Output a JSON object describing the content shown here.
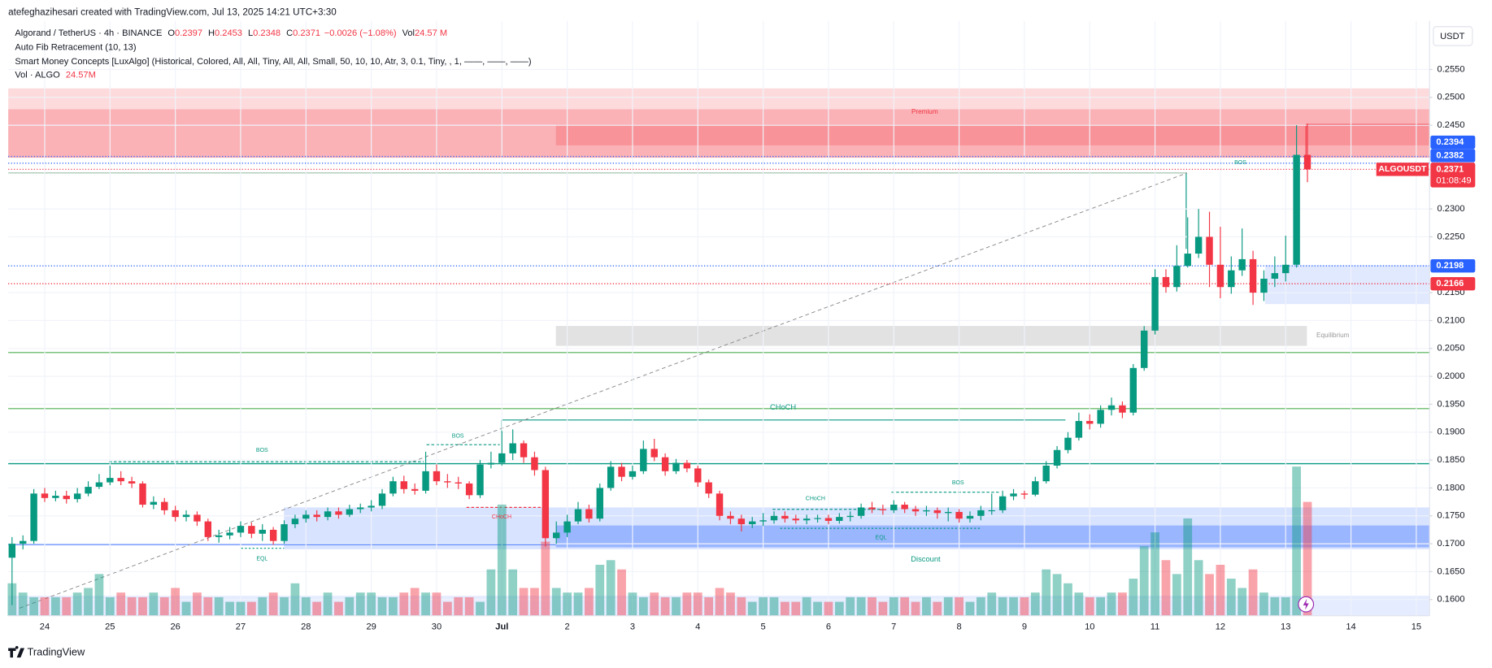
{
  "header": {
    "author": "atefeghazihesari created with TradingView.com, Jul 13, 2025 14:21 UTC+3:30"
  },
  "chart_data": {
    "type": "candlestick",
    "title": "Algorand / TetherUS · 4h · BINANCE",
    "ohlc_legend": [
      {
        "label": "O",
        "value": 0.2397
      },
      {
        "label": "H",
        "value": 0.2453
      },
      {
        "label": "L",
        "value": 0.2348
      },
      {
        "label": "C",
        "value": 0.2371
      }
    ],
    "change": "−0.0026 (−1.08%)",
    "volume_legend": {
      "label": "Vol",
      "value": "24.57 M"
    },
    "indicators": [
      "Auto Fib Retracement (10, 13)",
      "Smart Money Concepts [LuxAlgo] (Historical, Colored, All, All, Tiny, All, All, Small, 50, 10, 10, Atr, 3, 0.1, Tiny, , 1, ——, ——, ——)"
    ],
    "volume_indicator": {
      "label": "Vol · ALGO",
      "value": "24.57M"
    },
    "currency": "USDT",
    "up_color": "#089981",
    "down_color": "#f23645",
    "categories": [
      null,
      null,
      null,
      "24",
      null,
      null,
      null,
      null,
      null,
      "25",
      null,
      null,
      null,
      null,
      null,
      "26",
      null,
      null,
      null,
      null,
      null,
      "27",
      null,
      null,
      null,
      null,
      null,
      "28",
      null,
      null,
      null,
      null,
      null,
      "29",
      null,
      null,
      null,
      null,
      null,
      "30",
      null,
      null,
      null,
      null,
      null,
      "Jul",
      null,
      null,
      null,
      null,
      null,
      "2",
      null,
      null,
      null,
      null,
      null,
      "3",
      null,
      null,
      null,
      null,
      null,
      "4",
      null,
      null,
      null,
      null,
      null,
      "5",
      null,
      null,
      null,
      null,
      null,
      "6",
      null,
      null,
      null,
      null,
      null,
      "7",
      null,
      null,
      null,
      null,
      null,
      "8",
      null,
      null,
      null,
      null,
      null,
      "9",
      null,
      null,
      null,
      null,
      null,
      "10",
      null,
      null,
      null,
      null,
      null,
      "11",
      null,
      null,
      null,
      null,
      null,
      "12",
      null,
      null,
      null,
      null,
      null,
      "13",
      null,
      null,
      null,
      null,
      null,
      "14",
      null,
      null,
      null,
      null,
      null,
      "15"
    ],
    "open": [
      0.1675,
      0.17,
      0.1705,
      0.179,
      0.1782,
      0.1786,
      0.178,
      0.179,
      0.1802,
      0.181,
      0.1818,
      0.1812,
      0.1808,
      0.177,
      0.1775,
      0.176,
      0.1748,
      0.1752,
      0.174,
      0.1712,
      0.1715,
      0.172,
      0.1732,
      0.1718,
      0.1725,
      0.1705,
      0.1735,
      0.1745,
      0.1752,
      0.1748,
      0.1758,
      0.1752,
      0.1762,
      0.1765,
      0.1768,
      0.179,
      0.1812,
      0.1798,
      0.1795,
      0.183,
      0.1812,
      0.181,
      0.1808,
      0.1787,
      0.1842,
      0.1845,
      0.1862,
      0.188,
      0.1855,
      0.1832,
      0.171,
      0.172,
      0.174,
      0.1762,
      0.1745,
      0.18,
      0.1838,
      0.182,
      0.183,
      0.187,
      0.1855,
      0.183,
      0.1845,
      0.1835,
      0.181,
      0.179,
      0.175,
      0.1745,
      0.1735,
      0.174,
      0.1742,
      0.175,
      0.1745,
      0.1742,
      0.1745,
      0.1746,
      0.1741,
      0.1748,
      0.175,
      0.1765,
      0.1762,
      0.176,
      0.177,
      0.1762,
      0.1758,
      0.176,
      0.1755,
      0.1757,
      0.1745,
      0.175,
      0.176,
      0.176,
      0.1785,
      0.179,
      0.1788,
      0.1812,
      0.184,
      0.1868,
      0.189,
      0.192,
      0.1915,
      0.194,
      0.1948,
      0.1935,
      0.2015,
      0.2082,
      0.2178,
      0.216,
      0.2198,
      0.222,
      0.225,
      0.22,
      0.216,
      0.219,
      0.221,
      0.215,
      0.2175,
      0.2185,
      0.22,
      0.2397,
      null,
      null,
      null,
      null,
      null,
      null,
      null,
      null,
      null,
      null
    ],
    "high": [
      0.1712,
      0.1715,
      0.1798,
      0.18,
      0.1795,
      0.1795,
      0.18,
      0.1812,
      0.1825,
      0.184,
      0.183,
      0.182,
      0.1812,
      0.1785,
      0.1782,
      0.1768,
      0.176,
      0.1758,
      0.1745,
      0.1725,
      0.173,
      0.174,
      0.1738,
      0.1735,
      0.173,
      0.1742,
      0.1752,
      0.176,
      0.176,
      0.1765,
      0.1765,
      0.177,
      0.1772,
      0.1778,
      0.1798,
      0.182,
      0.1822,
      0.1808,
      0.1865,
      0.1842,
      0.1825,
      0.182,
      0.1812,
      0.185,
      0.1865,
      0.1902,
      0.1905,
      0.1885,
      0.1865,
      0.1838,
      0.174,
      0.1752,
      0.1775,
      0.177,
      0.1808,
      0.1848,
      0.1845,
      0.184,
      0.1885,
      0.1888,
      0.1862,
      0.1852,
      0.185,
      0.184,
      0.1815,
      0.1795,
      0.1758,
      0.1752,
      0.1748,
      0.1755,
      0.1758,
      0.1758,
      0.1752,
      0.1752,
      0.1752,
      0.1752,
      0.1755,
      0.1758,
      0.1772,
      0.1775,
      0.177,
      0.1778,
      0.1775,
      0.1768,
      0.1768,
      0.1765,
      0.1765,
      0.1762,
      0.1758,
      0.1768,
      0.179,
      0.1795,
      0.1798,
      0.1795,
      0.182,
      0.1848,
      0.1875,
      0.19,
      0.1935,
      0.1932,
      0.1948,
      0.1962,
      0.1955,
      0.2022,
      0.209,
      0.2192,
      0.2192,
      0.2235,
      0.2285,
      0.23,
      0.2295,
      0.2268,
      0.2215,
      0.2265,
      0.2225,
      0.219,
      0.2215,
      0.2252,
      0.245,
      0.2453,
      null,
      null,
      null,
      null,
      null,
      null,
      null,
      null,
      null,
      null
    ],
    "low": [
      0.159,
      0.169,
      0.17,
      0.1775,
      0.1776,
      0.1772,
      0.1774,
      0.1785,
      0.1798,
      0.1805,
      0.1805,
      0.18,
      0.1765,
      0.1762,
      0.1752,
      0.174,
      0.174,
      0.1732,
      0.1705,
      0.1702,
      0.1708,
      0.1712,
      0.171,
      0.1705,
      0.1698,
      0.17,
      0.1728,
      0.1738,
      0.174,
      0.1742,
      0.1745,
      0.1748,
      0.1755,
      0.1758,
      0.1762,
      0.1785,
      0.179,
      0.1788,
      0.179,
      0.1805,
      0.18,
      0.1798,
      0.178,
      0.1782,
      0.1835,
      0.184,
      0.185,
      0.1845,
      0.1822,
      0.1695,
      0.17,
      0.1712,
      0.1735,
      0.1738,
      0.174,
      0.1795,
      0.1812,
      0.1815,
      0.1825,
      0.1848,
      0.1822,
      0.1825,
      0.1828,
      0.1802,
      0.1782,
      0.1742,
      0.1735,
      0.1722,
      0.1728,
      0.1732,
      0.1736,
      0.1738,
      0.1736,
      0.1735,
      0.1738,
      0.1735,
      0.1736,
      0.174,
      0.1745,
      0.1755,
      0.1752,
      0.1755,
      0.1755,
      0.175,
      0.175,
      0.1745,
      0.174,
      0.1738,
      0.1738,
      0.1742,
      0.1752,
      0.1755,
      0.1778,
      0.178,
      0.1785,
      0.1808,
      0.1835,
      0.1862,
      0.1885,
      0.1905,
      0.1908,
      0.193,
      0.1925,
      0.193,
      0.201,
      0.2075,
      0.215,
      0.2152,
      0.2195,
      0.2212,
      0.216,
      0.214,
      0.2148,
      0.218,
      0.2128,
      0.2135,
      0.216,
      0.217,
      0.2195,
      0.2348,
      null,
      null,
      null,
      null,
      null,
      null,
      null,
      null,
      null,
      null
    ],
    "close": [
      0.17,
      0.1705,
      0.179,
      0.1782,
      0.1786,
      0.178,
      0.179,
      0.1802,
      0.181,
      0.1818,
      0.1812,
      0.1808,
      0.177,
      0.1775,
      0.176,
      0.1748,
      0.1752,
      0.174,
      0.1712,
      0.1715,
      0.172,
      0.1732,
      0.1718,
      0.1725,
      0.1705,
      0.1735,
      0.1745,
      0.1752,
      0.1748,
      0.1758,
      0.1752,
      0.1762,
      0.1765,
      0.1768,
      0.179,
      0.1812,
      0.1798,
      0.1795,
      0.183,
      0.1812,
      0.181,
      0.1808,
      0.1787,
      0.1842,
      0.1845,
      0.1862,
      0.188,
      0.1855,
      0.1832,
      0.171,
      0.172,
      0.174,
      0.1762,
      0.1745,
      0.18,
      0.1838,
      0.182,
      0.183,
      0.187,
      0.1855,
      0.183,
      0.1845,
      0.1835,
      0.181,
      0.179,
      0.175,
      0.1745,
      0.1735,
      0.174,
      0.1742,
      0.175,
      0.1745,
      0.1742,
      0.1745,
      0.1746,
      0.1741,
      0.1748,
      0.175,
      0.1765,
      0.1762,
      0.176,
      0.177,
      0.1762,
      0.1758,
      0.176,
      0.1755,
      0.1757,
      0.1745,
      0.175,
      0.176,
      0.176,
      0.1785,
      0.179,
      0.1788,
      0.1812,
      0.184,
      0.1868,
      0.189,
      0.192,
      0.1915,
      0.194,
      0.1948,
      0.1935,
      0.2015,
      0.2082,
      0.2178,
      0.216,
      0.2198,
      0.222,
      0.225,
      0.22,
      0.216,
      0.219,
      0.221,
      0.215,
      0.2175,
      0.2185,
      0.22,
      0.2397,
      0.2371,
      null,
      null,
      null,
      null,
      null,
      null,
      null,
      null,
      null,
      null
    ],
    "volume": [
      7,
      5,
      4,
      4,
      4,
      4,
      5,
      6,
      9,
      4,
      5,
      4,
      4,
      5,
      4,
      6,
      3,
      5,
      4,
      4,
      3,
      3,
      3,
      4,
      5,
      4,
      7,
      4,
      3,
      5,
      3,
      4,
      5,
      5,
      4,
      4,
      5,
      6,
      5,
      5,
      3,
      4,
      4,
      3,
      10,
      24,
      10,
      6,
      6,
      16,
      6,
      5,
      5,
      6,
      11,
      12,
      10,
      5,
      4,
      5,
      4,
      4,
      5,
      5,
      4,
      6,
      5,
      4,
      3,
      4,
      4,
      3,
      3,
      4,
      3,
      3,
      3,
      4,
      4,
      4,
      3,
      4,
      4,
      3,
      4,
      3,
      4,
      4,
      3,
      4,
      5,
      4,
      4,
      4,
      5,
      10,
      9,
      7,
      5,
      4,
      4,
      5,
      5,
      8,
      15,
      18,
      12,
      9,
      21,
      12,
      9,
      11,
      8,
      6,
      10,
      5,
      4,
      4,
      32.2,
      24.57,
      null,
      null,
      null,
      null,
      null,
      null,
      null,
      null,
      null,
      null
    ],
    "ylim": [
      0.1571,
      0.2637
    ],
    "yticks": [
      {
        "value": 0.255,
        "label": "0.2550"
      },
      {
        "value": 0.25,
        "label": "0.2500"
      },
      {
        "value": 0.245,
        "label": "0.2450"
      },
      {
        "value": 0.23,
        "label": "0.2300"
      },
      {
        "value": 0.225,
        "label": "0.2250"
      },
      {
        "value": 0.215,
        "label": "0.2150"
      },
      {
        "value": 0.21,
        "label": "0.2100"
      },
      {
        "value": 0.205,
        "label": "0.2050"
      },
      {
        "value": 0.2,
        "label": "0.2000"
      },
      {
        "value": 0.195,
        "label": "0.1950"
      },
      {
        "value": 0.19,
        "label": "0.1900"
      },
      {
        "value": 0.185,
        "label": "0.1850"
      },
      {
        "value": 0.18,
        "label": "0.1800"
      },
      {
        "value": 0.175,
        "label": "0.1750"
      },
      {
        "value": 0.17,
        "label": "0.1700"
      },
      {
        "value": 0.165,
        "label": "0.1650"
      },
      {
        "value": 0.16,
        "label": "0.1600"
      }
    ],
    "grid": true,
    "last_price": {
      "value": 0.2371,
      "symbol": "ALGOUSDT",
      "countdown": "01:08:49",
      "color": "#f23645"
    },
    "price_labels": [
      {
        "value": 0.2382,
        "color": "#2962ff"
      },
      {
        "value": 0.2394,
        "color": "#2962ff"
      },
      {
        "value": 0.2198,
        "color": "#2962ff"
      },
      {
        "value": 0.2166,
        "color": "#f23645"
      }
    ],
    "annotations": [
      "Premium",
      "Equilibrium",
      "Discount",
      "CHoCH",
      "CHoCH",
      "CHoCH",
      "BOS",
      "BOS",
      "BOS",
      "BOS",
      "EQL",
      "EQL"
    ]
  },
  "footer": {
    "brand": "TradingView"
  }
}
